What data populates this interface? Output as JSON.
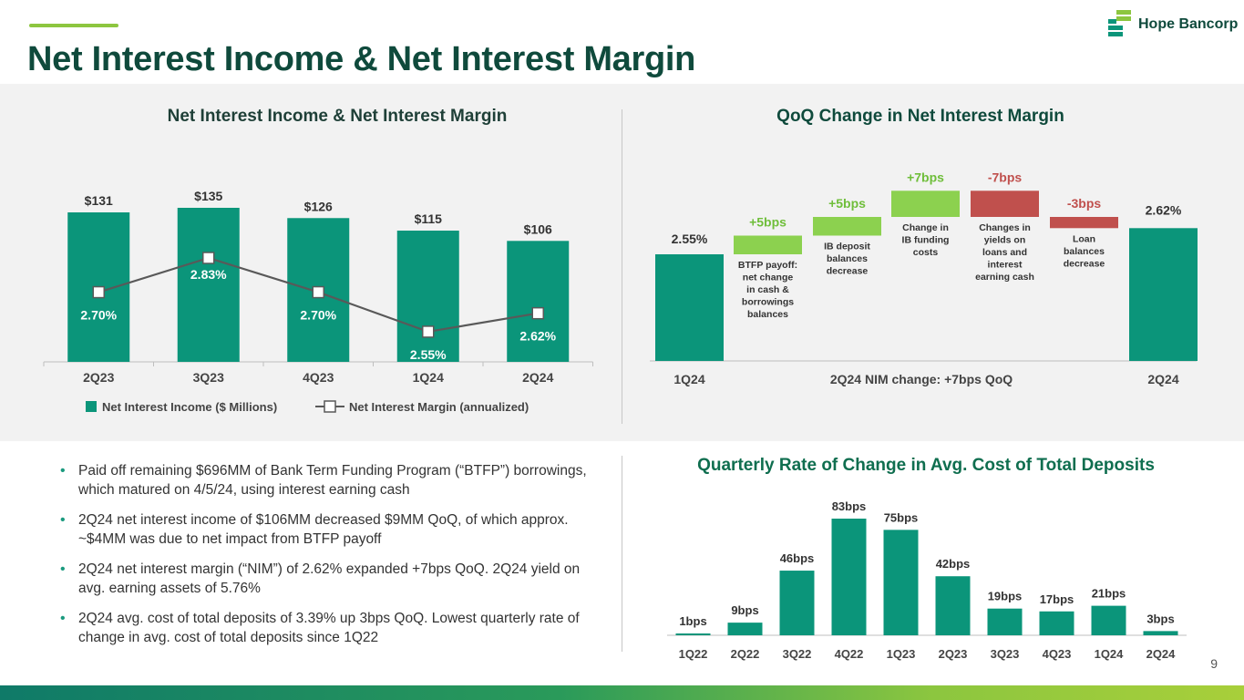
{
  "page": {
    "title": "Net Interest Income & Net Interest Margin",
    "page_number": "9"
  },
  "logo": {
    "text": "Hope Bancorp"
  },
  "colors": {
    "teal": "#0b957a",
    "green_light": "#8cd14f",
    "red": "#c0504d",
    "dark": "#0f4a3c",
    "line": "#595959"
  },
  "chart_data": [
    {
      "id": "nii_nim",
      "type": "bar",
      "title": "Net Interest Income & Net Interest Margin",
      "categories": [
        "2Q23",
        "3Q23",
        "4Q23",
        "1Q24",
        "2Q24"
      ],
      "series": [
        {
          "name": "Net Interest Income ($ Millions)",
          "kind": "bar",
          "values": [
            131,
            135,
            126,
            115,
            106
          ],
          "labels": [
            "$131",
            "$135",
            "$126",
            "$115",
            "$106"
          ]
        },
        {
          "name": "Net Interest Margin (annualized)",
          "kind": "line",
          "values": [
            2.7,
            2.83,
            2.7,
            2.55,
            2.62
          ],
          "labels": [
            "2.70%",
            "2.83%",
            "2.70%",
            "2.55%",
            "2.62%"
          ]
        }
      ],
      "legend": [
        "Net Interest Income ($ Millions)",
        "Net Interest Margin (annualized)"
      ]
    },
    {
      "id": "qoq_nim",
      "type": "waterfall",
      "title": "QoQ Change in Net Interest Margin",
      "start": {
        "label": "1Q24",
        "value": 2.55,
        "value_label": "2.55%"
      },
      "end": {
        "label": "2Q24",
        "value": 2.62,
        "value_label": "2.62%"
      },
      "steps": [
        {
          "change_bps": 5,
          "label": "+5bps",
          "note": [
            "BTFP payoff:",
            "net change",
            "in cash &",
            "borrowings",
            "balances"
          ]
        },
        {
          "change_bps": 5,
          "label": "+5bps",
          "note": [
            "IB deposit",
            "balances",
            "decrease"
          ]
        },
        {
          "change_bps": 7,
          "label": "+7bps",
          "note": [
            "Change in",
            "IB funding",
            "costs"
          ]
        },
        {
          "change_bps": -7,
          "label": "-7bps",
          "note": [
            "Changes in",
            "yields on",
            "loans and",
            "interest",
            "earning cash"
          ]
        },
        {
          "change_bps": -3,
          "label": "-3bps",
          "note": [
            "Loan",
            "balances",
            "decrease"
          ]
        }
      ],
      "footer": "2Q24 NIM change: +7bps QoQ"
    },
    {
      "id": "deposit_cost",
      "type": "bar",
      "title": "Quarterly Rate of Change in Avg. Cost of Total Deposits",
      "categories": [
        "1Q22",
        "2Q22",
        "3Q22",
        "4Q22",
        "1Q23",
        "2Q23",
        "3Q23",
        "4Q23",
        "1Q24",
        "2Q24"
      ],
      "values": [
        1,
        9,
        46,
        83,
        75,
        42,
        19,
        17,
        21,
        3
      ],
      "labels": [
        "1bps",
        "9bps",
        "46bps",
        "83bps",
        "75bps",
        "42bps",
        "19bps",
        "17bps",
        "21bps",
        "3bps"
      ]
    }
  ],
  "bullets": [
    "Paid off remaining $696MM of Bank Term Funding Program (“BTFP”) borrowings, which matured on 4/5/24, using interest earning cash",
    "2Q24 net interest income of $106MM decreased $9MM QoQ, of which approx. ~$4MM was due to net impact from BTFP payoff",
    "2Q24 net interest margin (“NIM”) of 2.62% expanded +7bps QoQ. 2Q24 yield on avg. earning assets of 5.76%",
    "2Q24 avg. cost of total deposits of 3.39% up 3bps QoQ. Lowest quarterly rate of change in avg. cost of total deposits since 1Q22"
  ]
}
